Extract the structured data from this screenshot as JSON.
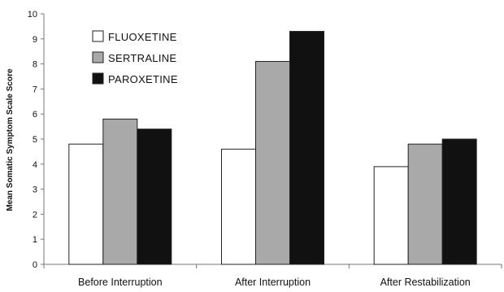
{
  "chart_data": {
    "type": "bar",
    "title": "",
    "xlabel": "",
    "ylabel": "Mean Somatic Symptom Scale Score",
    "ylim": [
      0,
      10
    ],
    "yticks": [
      0,
      1,
      2,
      3,
      4,
      5,
      6,
      7,
      8,
      9,
      10
    ],
    "grid": false,
    "legend_position": "top-left",
    "categories": [
      "Before Interruption",
      "After Interruption",
      "After Restabilization"
    ],
    "series": [
      {
        "name": "FLUOXETINE",
        "color": "#ffffff",
        "values": [
          4.8,
          4.6,
          3.9
        ]
      },
      {
        "name": "SERTRALINE",
        "color": "#a9a9a9",
        "values": [
          5.8,
          8.1,
          4.8
        ]
      },
      {
        "name": "PAROXETINE",
        "color": "#111111",
        "values": [
          5.4,
          9.3,
          5.0
        ]
      }
    ]
  }
}
